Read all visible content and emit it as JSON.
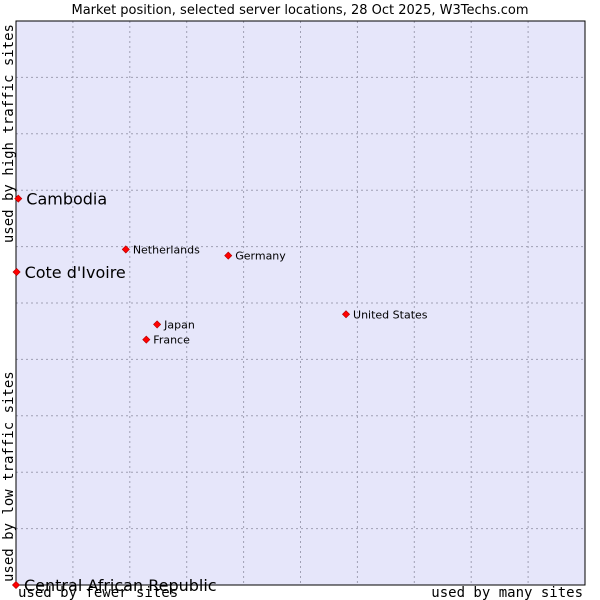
{
  "chart_data": {
    "type": "scatter",
    "title": "Market position, selected server locations, 28 Oct 2025, W3Techs.com",
    "xlabel_left": "used by fewer sites",
    "xlabel_right": "used by many sites",
    "ylabel_bottom": "used by low traffic sites",
    "ylabel_top": "used by high traffic sites",
    "xlim": [
      0,
      100
    ],
    "ylim": [
      0,
      100
    ],
    "grid": true,
    "colors": {
      "plot_bg": "#e6e6fa",
      "grid": "#a0a0b4",
      "point": "#ff0000",
      "border": "#000000"
    },
    "points": [
      {
        "name": "Cambodia",
        "x": 0.4,
        "y": 68.5,
        "emphasis": true
      },
      {
        "name": "Cote d'Ivoire",
        "x": 0.1,
        "y": 55.5,
        "emphasis": true
      },
      {
        "name": "Central African Republic",
        "x": 0.0,
        "y": 0.0,
        "emphasis": true
      },
      {
        "name": "Netherlands",
        "x": 19.3,
        "y": 59.5,
        "emphasis": false
      },
      {
        "name": "Germany",
        "x": 37.3,
        "y": 58.4,
        "emphasis": false
      },
      {
        "name": "United States",
        "x": 58.0,
        "y": 48.0,
        "emphasis": false
      },
      {
        "name": "Japan",
        "x": 24.8,
        "y": 46.2,
        "emphasis": false
      },
      {
        "name": "France",
        "x": 22.9,
        "y": 43.5,
        "emphasis": false
      }
    ]
  }
}
